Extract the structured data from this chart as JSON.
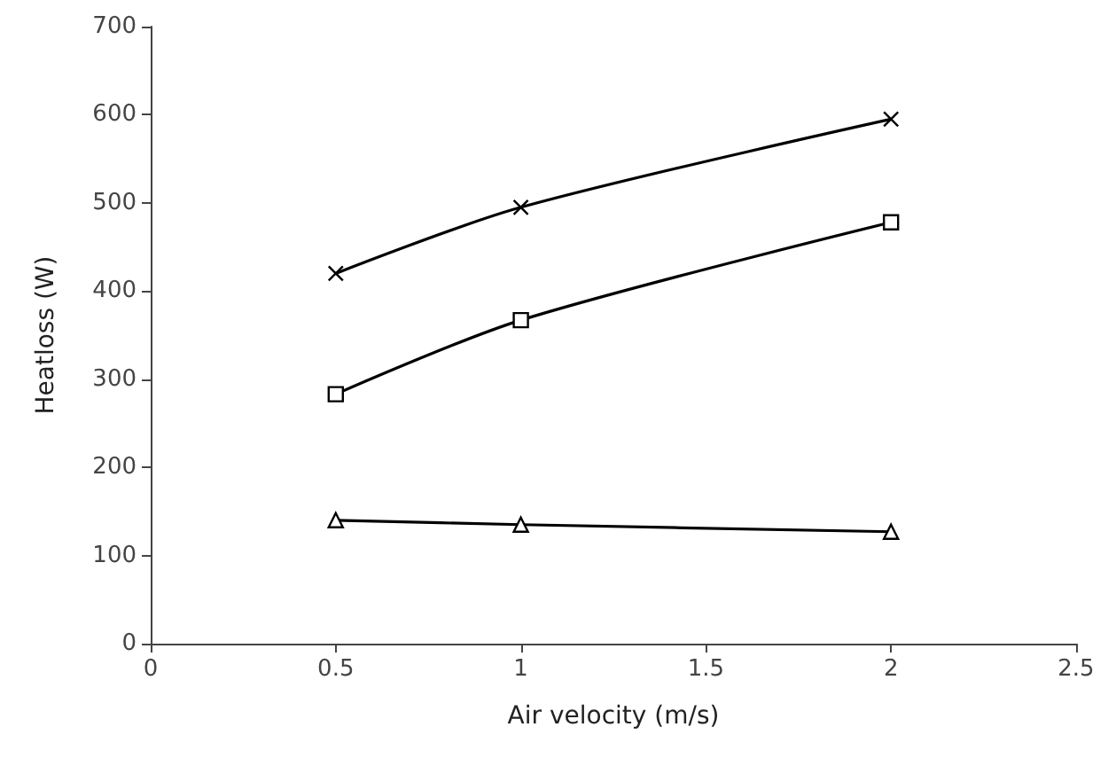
{
  "chart_data": {
    "type": "line",
    "xlabel": "Air velocity (m/s)",
    "ylabel": "Heatloss (W)",
    "xlim": [
      0,
      2.5
    ],
    "xticks": [
      0,
      0.5,
      1,
      1.5,
      2,
      2.5
    ],
    "ylim": [
      0,
      700
    ],
    "yticks": [
      0,
      100,
      200,
      300,
      400,
      500,
      600,
      700
    ],
    "grid": false,
    "line_style": "solid",
    "x": [
      0.5,
      1,
      2
    ],
    "series": [
      {
        "color": "#000000",
        "marker": "cross",
        "values": [
          420,
          495,
          595
        ]
      },
      {
        "color": "#000000",
        "marker": "square",
        "values": [
          283,
          367,
          478
        ]
      },
      {
        "color": "#000000",
        "marker": "triangle",
        "values": [
          140,
          135,
          127
        ]
      }
    ]
  }
}
